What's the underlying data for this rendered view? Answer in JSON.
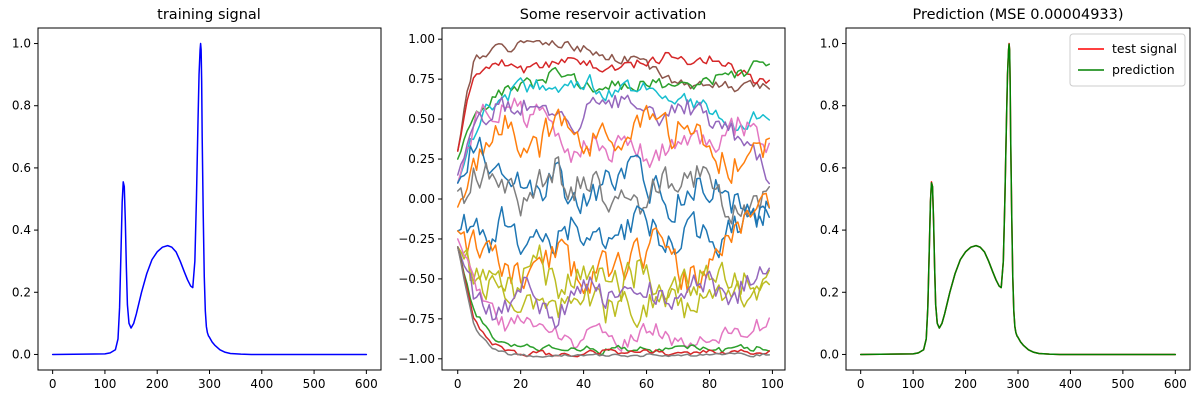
{
  "chart_data": [
    {
      "type": "line",
      "title": "training signal",
      "xlabel": "",
      "ylabel": "",
      "xlim": [
        -28,
        628
      ],
      "ylim": [
        -0.05,
        1.05
      ],
      "xticks": [
        0,
        100,
        200,
        300,
        400,
        500,
        600
      ],
      "xtick_labels": [
        "0",
        "100",
        "200",
        "300",
        "400",
        "500",
        "600"
      ],
      "yticks": [
        0.0,
        0.2,
        0.4,
        0.6,
        0.8,
        1.0
      ],
      "ytick_labels": [
        "0.0",
        "0.2",
        "0.4",
        "0.6",
        "0.8",
        "1.0"
      ],
      "grid": false,
      "series": [
        {
          "color": "#0000ff",
          "x": [
            0,
            100,
            110,
            120,
            125,
            128,
            131,
            133,
            135,
            137,
            139,
            141,
            143,
            146,
            150,
            155,
            160,
            170,
            180,
            190,
            200,
            210,
            220,
            228,
            236,
            244,
            252,
            258,
            264,
            268,
            272,
            275,
            278,
            280,
            282,
            283,
            284,
            285,
            286,
            288,
            290,
            292,
            294,
            296,
            298,
            300,
            305,
            310,
            320,
            330,
            340,
            360,
            380,
            400,
            500,
            600
          ],
          "y": [
            0.0,
            0.002,
            0.005,
            0.015,
            0.05,
            0.15,
            0.35,
            0.49,
            0.555,
            0.54,
            0.43,
            0.28,
            0.16,
            0.1,
            0.085,
            0.1,
            0.13,
            0.2,
            0.26,
            0.305,
            0.33,
            0.345,
            0.35,
            0.345,
            0.33,
            0.3,
            0.265,
            0.24,
            0.22,
            0.215,
            0.3,
            0.5,
            0.75,
            0.9,
            0.98,
            1.0,
            0.98,
            0.88,
            0.7,
            0.45,
            0.25,
            0.14,
            0.09,
            0.07,
            0.06,
            0.055,
            0.04,
            0.03,
            0.015,
            0.007,
            0.003,
            0.001,
            0.0,
            0.0,
            0.0,
            0.0
          ]
        }
      ]
    },
    {
      "type": "line",
      "title": "Some reservoir activation",
      "xlabel": "",
      "ylabel": "",
      "xlim": [
        -5,
        104
      ],
      "ylim": [
        -1.07,
        1.07
      ],
      "xticks": [
        0,
        20,
        40,
        60,
        80,
        100
      ],
      "xtick_labels": [
        "0",
        "20",
        "40",
        "60",
        "80",
        "100"
      ],
      "yticks": [
        -1.0,
        -0.75,
        -0.5,
        -0.25,
        0.0,
        0.25,
        0.5,
        0.75,
        1.0
      ],
      "ytick_labels": [
        "−1.00",
        "−0.75",
        "−0.50",
        "−0.25",
        "0.00",
        "0.25",
        "0.50",
        "0.75",
        "1.00"
      ],
      "grid": false,
      "n_points": 100,
      "series": [
        {
          "color": "#8c564b",
          "levels": [
            0.3,
            0.88,
            0.93,
            0.95,
            0.97,
            0.96,
            0.97,
            0.95,
            0.93,
            0.9,
            0.88,
            0.85,
            0.82,
            0.75,
            0.7,
            0.72,
            0.72,
            0.68,
            0.72,
            0.7
          ],
          "amp": 0.03,
          "seed": 1
        },
        {
          "color": "#d62728",
          "levels": [
            0.3,
            0.8,
            0.82,
            0.85,
            0.8,
            0.82,
            0.85,
            0.88,
            0.85,
            0.8,
            0.82,
            0.85,
            0.88,
            0.9,
            0.85,
            0.88,
            0.87,
            0.8,
            0.75,
            0.72
          ],
          "amp": 0.03,
          "seed": 2
        },
        {
          "color": "#2ca02c",
          "levels": [
            0.25,
            0.5,
            0.6,
            0.68,
            0.7,
            0.72,
            0.8,
            0.75,
            0.7,
            0.72,
            0.7,
            0.72,
            0.74,
            0.72,
            0.7,
            0.72,
            0.75,
            0.78,
            0.82,
            0.85
          ],
          "amp": 0.04,
          "seed": 3
        },
        {
          "color": "#17becf",
          "levels": [
            0.1,
            0.4,
            0.6,
            0.65,
            0.7,
            0.72,
            0.65,
            0.7,
            0.75,
            0.68,
            0.7,
            0.72,
            0.65,
            0.6,
            0.62,
            0.6,
            0.55,
            0.45,
            0.5,
            0.55
          ],
          "amp": 0.05,
          "seed": 4
        },
        {
          "color": "#e377c2",
          "levels": [
            0.1,
            0.45,
            0.55,
            0.6,
            0.5,
            0.55,
            0.45,
            0.3,
            0.35,
            0.25,
            0.4,
            0.3,
            0.2,
            0.35,
            0.3,
            0.4,
            0.35,
            0.45,
            0.4,
            0.35
          ],
          "amp": 0.08,
          "seed": 5
        },
        {
          "color": "#9467bd",
          "levels": [
            0.15,
            0.5,
            0.55,
            0.58,
            0.6,
            0.52,
            0.55,
            0.48,
            0.55,
            0.6,
            0.62,
            0.58,
            0.5,
            0.55,
            0.58,
            0.52,
            0.45,
            0.4,
            0.3,
            0.15
          ],
          "amp": 0.06,
          "seed": 6
        },
        {
          "color": "#ff7f0e",
          "levels": [
            -0.05,
            0.2,
            0.4,
            0.5,
            0.35,
            0.3,
            0.55,
            0.45,
            0.3,
            0.5,
            0.35,
            0.55,
            0.45,
            0.4,
            0.5,
            0.35,
            0.25,
            0.2,
            0.3,
            0.3
          ],
          "amp": 0.09,
          "seed": 7
        },
        {
          "color": "#1f77b4",
          "levels": [
            0.1,
            0.3,
            0.25,
            0.1,
            0.15,
            0.05,
            0.2,
            0.0,
            -0.05,
            0.15,
            0.1,
            0.25,
            0.05,
            -0.05,
            0.0,
            0.1,
            0.05,
            -0.05,
            -0.1,
            -0.05
          ],
          "amp": 0.1,
          "seed": 8
        },
        {
          "color": "#7f7f7f",
          "levels": [
            0.05,
            0.15,
            0.2,
            0.05,
            -0.05,
            0.1,
            0.2,
            0.05,
            0.15,
            0.0,
            0.1,
            -0.05,
            0.05,
            0.15,
            0.2,
            0.1,
            0.05,
            -0.1,
            0.0,
            -0.05
          ],
          "amp": 0.1,
          "seed": 9
        },
        {
          "color": "#1f77b4",
          "levels": [
            -0.2,
            -0.15,
            -0.25,
            -0.1,
            -0.3,
            -0.2,
            -0.25,
            -0.15,
            -0.3,
            -0.2,
            -0.25,
            -0.1,
            -0.2,
            -0.3,
            -0.15,
            -0.2,
            -0.25,
            -0.15,
            -0.1,
            -0.15
          ],
          "amp": 0.09,
          "seed": 10
        },
        {
          "color": "#ff7f0e",
          "levels": [
            -0.2,
            -0.3,
            -0.4,
            -0.45,
            -0.5,
            -0.4,
            -0.35,
            -0.45,
            -0.5,
            -0.4,
            -0.45,
            -0.35,
            -0.3,
            -0.4,
            -0.5,
            -0.45,
            -0.3,
            -0.2,
            -0.1,
            0.0
          ],
          "amp": 0.1,
          "seed": 11
        },
        {
          "color": "#bcbd22",
          "levels": [
            -0.3,
            -0.5,
            -0.55,
            -0.6,
            -0.5,
            -0.4,
            -0.55,
            -0.5,
            -0.45,
            -0.5,
            -0.55,
            -0.45,
            -0.5,
            -0.6,
            -0.55,
            -0.5,
            -0.45,
            -0.5,
            -0.55,
            -0.5
          ],
          "amp": 0.1,
          "seed": 12
        },
        {
          "color": "#bcbd22",
          "levels": [
            -0.3,
            -0.45,
            -0.55,
            -0.6,
            -0.65,
            -0.6,
            -0.7,
            -0.65,
            -0.6,
            -0.7,
            -0.65,
            -0.7,
            -0.6,
            -0.65,
            -0.7,
            -0.6,
            -0.65,
            -0.6,
            -0.55,
            -0.5
          ],
          "amp": 0.09,
          "seed": 13
        },
        {
          "color": "#e377c2",
          "levels": [
            -0.25,
            -0.5,
            -0.7,
            -0.8,
            -0.75,
            -0.8,
            -0.85,
            -0.9,
            -0.8,
            -0.85,
            -0.9,
            -0.85,
            -0.8,
            -0.88,
            -0.9,
            -0.85,
            -0.88,
            -0.82,
            -0.8,
            -0.78
          ],
          "amp": 0.05,
          "seed": 14
        },
        {
          "color": "#9467bd",
          "levels": [
            -0.3,
            -0.6,
            -0.7,
            -0.65,
            -0.55,
            -0.65,
            -0.75,
            -0.6,
            -0.55,
            -0.65,
            -0.6,
            -0.55,
            -0.6,
            -0.65,
            -0.6,
            -0.5,
            -0.55,
            -0.6,
            -0.5,
            -0.42
          ],
          "amp": 0.08,
          "seed": 15
        },
        {
          "color": "#2ca02c",
          "levels": [
            -0.3,
            -0.7,
            -0.85,
            -0.9,
            -0.92,
            -0.95,
            -0.93,
            -0.95,
            -0.94,
            -0.95,
            -0.93,
            -0.94,
            -0.95,
            -0.93,
            -0.92,
            -0.94,
            -0.95,
            -0.93,
            -0.94,
            -0.93
          ],
          "amp": 0.02,
          "seed": 16
        },
        {
          "color": "#d62728",
          "levels": [
            -0.3,
            -0.75,
            -0.9,
            -0.95,
            -0.97,
            -0.96,
            -0.98,
            -0.97,
            -0.96,
            -0.95,
            -0.97,
            -0.96,
            -0.95,
            -0.97,
            -0.96,
            -0.95,
            -0.96,
            -0.95,
            -0.96,
            -0.95
          ],
          "amp": 0.015,
          "seed": 17
        },
        {
          "color": "#7f7f7f",
          "levels": [
            -0.3,
            -0.8,
            -0.93,
            -0.97,
            -0.98,
            -0.98,
            -0.98,
            -0.98,
            -0.97,
            -0.98,
            -0.98,
            -0.98,
            -0.97,
            -0.98,
            -0.98,
            -0.98,
            -0.97,
            -0.97,
            -0.98,
            -0.97
          ],
          "amp": 0.008,
          "seed": 18
        }
      ]
    },
    {
      "type": "line",
      "title": "Prediction (MSE 0.00004933)",
      "xlabel": "",
      "ylabel": "",
      "xlim": [
        -28,
        628
      ],
      "ylim": [
        -0.05,
        1.05
      ],
      "xticks": [
        0,
        100,
        200,
        300,
        400,
        500,
        600
      ],
      "xtick_labels": [
        "0",
        "100",
        "200",
        "300",
        "400",
        "500",
        "600"
      ],
      "yticks": [
        0.0,
        0.2,
        0.4,
        0.6,
        0.8,
        1.0
      ],
      "ytick_labels": [
        "0.0",
        "0.2",
        "0.4",
        "0.6",
        "0.8",
        "1.0"
      ],
      "grid": false,
      "legend": "top-right",
      "series": [
        {
          "name": "test signal",
          "color": "#ff0000",
          "x": [
            0,
            100,
            110,
            120,
            125,
            128,
            131,
            133,
            135,
            137,
            139,
            141,
            143,
            146,
            150,
            155,
            160,
            170,
            180,
            190,
            200,
            210,
            220,
            228,
            236,
            244,
            252,
            258,
            264,
            268,
            272,
            275,
            278,
            280,
            282,
            283,
            284,
            285,
            286,
            288,
            290,
            292,
            294,
            296,
            298,
            300,
            305,
            310,
            320,
            330,
            340,
            360,
            380,
            400,
            500,
            600
          ],
          "y": [
            0.0,
            0.002,
            0.005,
            0.015,
            0.05,
            0.15,
            0.35,
            0.49,
            0.555,
            0.54,
            0.43,
            0.28,
            0.16,
            0.1,
            0.085,
            0.1,
            0.13,
            0.2,
            0.26,
            0.305,
            0.33,
            0.345,
            0.35,
            0.345,
            0.33,
            0.3,
            0.265,
            0.24,
            0.22,
            0.215,
            0.3,
            0.5,
            0.75,
            0.9,
            0.98,
            1.0,
            0.98,
            0.88,
            0.7,
            0.45,
            0.25,
            0.14,
            0.09,
            0.07,
            0.06,
            0.055,
            0.04,
            0.03,
            0.015,
            0.007,
            0.003,
            0.001,
            0.0,
            0.0,
            0.0,
            0.0
          ]
        },
        {
          "name": "prediction",
          "color": "#008000",
          "x": [
            0,
            100,
            110,
            120,
            125,
            128,
            131,
            133,
            135,
            137,
            139,
            141,
            143,
            146,
            150,
            155,
            160,
            170,
            180,
            190,
            200,
            210,
            220,
            228,
            236,
            244,
            252,
            258,
            264,
            268,
            272,
            275,
            278,
            280,
            282,
            283,
            284,
            285,
            286,
            288,
            290,
            292,
            294,
            296,
            298,
            300,
            305,
            310,
            320,
            330,
            340,
            360,
            380,
            400,
            500,
            600
          ],
          "y": [
            0.0,
            0.002,
            0.005,
            0.015,
            0.05,
            0.15,
            0.35,
            0.49,
            0.552,
            0.54,
            0.43,
            0.28,
            0.16,
            0.1,
            0.085,
            0.1,
            0.13,
            0.2,
            0.26,
            0.305,
            0.33,
            0.345,
            0.35,
            0.345,
            0.33,
            0.3,
            0.265,
            0.24,
            0.22,
            0.215,
            0.3,
            0.5,
            0.75,
            0.9,
            0.98,
            0.998,
            0.98,
            0.88,
            0.7,
            0.45,
            0.25,
            0.14,
            0.09,
            0.07,
            0.06,
            0.055,
            0.04,
            0.03,
            0.015,
            0.007,
            0.003,
            0.001,
            0.0,
            0.0,
            0.0,
            0.0
          ]
        }
      ]
    }
  ]
}
